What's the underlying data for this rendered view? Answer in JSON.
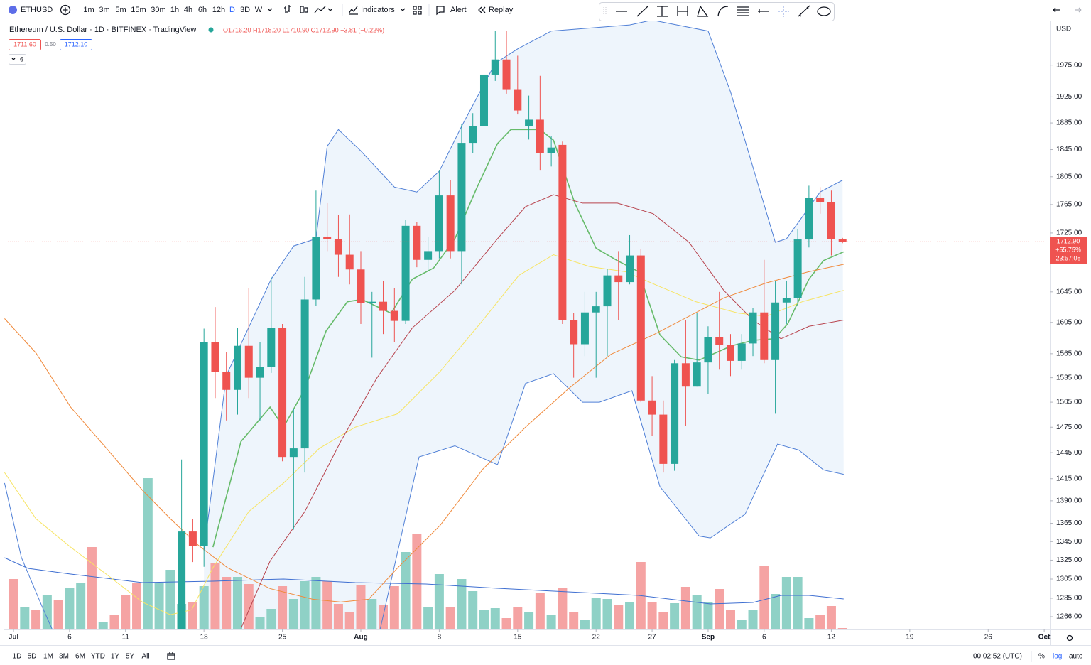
{
  "toolbar": {
    "symbol": "ETHUSD",
    "intervals": [
      "1m",
      "3m",
      "5m",
      "15m",
      "30m",
      "1h",
      "4h",
      "6h",
      "12h",
      "D",
      "3D",
      "W"
    ],
    "indicators": "Indicators",
    "alert": "Alert",
    "replay": "Replay"
  },
  "header": {
    "title": "Ethereum / U.S. Dollar · 1D · BITFINEX · TradingView",
    "ohlc": "O1716.20 H1718.20 L1710.90 C1712.90 −3.81 (−0.22%)",
    "bid": "1711.60",
    "spread": "0.50",
    "ask": "1712.10",
    "indicator_count": "6"
  },
  "bottom_bar": {
    "ranges": [
      "1D",
      "5D",
      "1M",
      "3M",
      "6M",
      "YTD",
      "1Y",
      "5Y",
      "All"
    ],
    "clock": "00:02:52 (UTC)",
    "percent": "%",
    "log": "log",
    "auto": "auto"
  },
  "chart_data": {
    "type": "candlestick",
    "currency": "USD",
    "log_scale": true,
    "grid": false,
    "ylim": [
      1253,
      2046
    ],
    "yticks": [
      {
        "value": 1975,
        "label": "1975.00"
      },
      {
        "value": 1925,
        "label": "1925.00"
      },
      {
        "value": 1885,
        "label": "1885.00"
      },
      {
        "value": 1845,
        "label": "1845.00"
      },
      {
        "value": 1805,
        "label": "1805.00"
      },
      {
        "value": 1765,
        "label": "1765.00"
      },
      {
        "value": 1725,
        "label": "1725.00"
      },
      {
        "value": 1645,
        "label": "1645.00"
      },
      {
        "value": 1605,
        "label": "1605.00"
      },
      {
        "value": 1565,
        "label": "1565.00"
      },
      {
        "value": 1535,
        "label": "1535.00"
      },
      {
        "value": 1505,
        "label": "1505.00"
      },
      {
        "value": 1475,
        "label": "1475.00"
      },
      {
        "value": 1445,
        "label": "1445.00"
      },
      {
        "value": 1415,
        "label": "1415.00"
      },
      {
        "value": 1390,
        "label": "1390.00"
      },
      {
        "value": 1365,
        "label": "1365.00"
      },
      {
        "value": 1345,
        "label": "1345.00"
      },
      {
        "value": 1325,
        "label": "1325.00"
      },
      {
        "value": 1305,
        "label": "1305.00"
      },
      {
        "value": 1285,
        "label": "1285.00"
      },
      {
        "value": 1266,
        "label": "1266.00"
      }
    ],
    "xlim": [
      0.11,
      93.5
    ],
    "xticks": [
      {
        "value": 1,
        "label": "Jul"
      },
      6,
      11,
      18,
      25,
      {
        "value": 32,
        "label": "Aug"
      },
      {
        "value": 39,
        "label": "8"
      },
      {
        "value": 46,
        "label": "15"
      },
      {
        "value": 53,
        "label": "22"
      },
      {
        "value": 58,
        "label": "27"
      },
      {
        "value": 63,
        "label": "Sep"
      },
      {
        "value": 68,
        "label": "6"
      },
      {
        "value": 74,
        "label": "12"
      },
      {
        "value": 81,
        "label": "19"
      },
      {
        "value": 88,
        "label": "26"
      },
      {
        "value": 93,
        "label": "Oct"
      }
    ],
    "up_color": "#26a69a",
    "down_color": "#ef5350",
    "x": [
      16,
      17,
      18,
      19,
      20,
      21,
      22,
      23,
      24,
      25,
      26,
      27,
      28,
      29,
      30,
      31,
      32,
      33,
      34,
      35,
      36,
      37,
      38,
      39,
      40,
      41,
      42,
      43,
      44,
      45,
      46,
      47,
      48,
      49,
      50,
      51,
      52,
      53,
      54,
      55,
      56,
      57,
      58,
      59,
      60,
      61,
      62,
      63,
      64,
      65,
      66,
      67,
      68,
      69,
      70,
      71,
      72,
      73,
      74,
      75
    ],
    "open": [
      1228,
      1356,
      1340,
      1580,
      1542,
      1520,
      1575,
      1535,
      1548,
      1598,
      1440,
      1450,
      1635,
      1720,
      1717,
      1695,
      1675,
      1630,
      1632,
      1620,
      1607,
      1735,
      1688,
      1700,
      1778,
      1700,
      1855,
      1880,
      1960,
      1984,
      1937,
      1880,
      1890,
      1840,
      1852,
      1608,
      1577,
      1618,
      1626,
      1667,
      1658,
      1694,
      1507,
      1490,
      1432,
      1553,
      1524,
      1554,
      1586,
      1576,
      1556,
      1578,
      1618,
      1557,
      1631,
      1637,
      1716,
      1775,
      1768,
      1716.2
    ],
    "high": [
      1437,
      1370,
      1597,
      1625,
      1567,
      1598,
      1650,
      1580,
      1665,
      1603,
      1497,
      1665,
      1785,
      1767,
      1750,
      1751,
      1700,
      1645,
      1660,
      1650,
      1743,
      1740,
      1720,
      1815,
      1800,
      1883,
      1900,
      1970,
      2030,
      2030,
      1990,
      1927,
      1958,
      1865,
      1857,
      1617,
      1645,
      1645,
      1676,
      1700,
      1722,
      1703,
      1537,
      1507,
      1557,
      1608,
      1617,
      1600,
      1645,
      1590,
      1590,
      1624,
      1688,
      1660,
      1660,
      1730,
      1792,
      1790,
      1785,
      1718.2
    ],
    "low": [
      1210,
      1323,
      1318,
      1510,
      1483,
      1490,
      1510,
      1483,
      1541,
      1435,
      1358,
      1422,
      1627,
      1700,
      1665,
      1655,
      1603,
      1560,
      1590,
      1580,
      1603,
      1678,
      1673,
      1690,
      1690,
      1655,
      1840,
      1870,
      1950,
      1930,
      1898,
      1860,
      1815,
      1820,
      1603,
      1535,
      1562,
      1535,
      1562,
      1608,
      1655,
      1505,
      1465,
      1422,
      1424,
      1476,
      1524,
      1515,
      1545,
      1537,
      1545,
      1562,
      1553,
      1491,
      1603,
      1627,
      1705,
      1752,
      1694,
      1710.9
    ],
    "close": [
      1356,
      1340,
      1580,
      1542,
      1520,
      1575,
      1535,
      1548,
      1598,
      1440,
      1450,
      1635,
      1720,
      1717,
      1695,
      1675,
      1630,
      1632,
      1620,
      1607,
      1735,
      1688,
      1700,
      1778,
      1700,
      1855,
      1880,
      1960,
      1984,
      1937,
      1904,
      1890,
      1840,
      1848,
      1608,
      1577,
      1618,
      1626,
      1667,
      1658,
      1694,
      1507,
      1490,
      1432,
      1553,
      1524,
      1554,
      1586,
      1576,
      1556,
      1578,
      1618,
      1557,
      1631,
      1637,
      1716,
      1775,
      1768,
      1716.2,
      1712.9
    ],
    "last_price_label": [
      "1712.90",
      "+55.75%",
      "23:57:08"
    ],
    "band_fill": "#eef5fc",
    "lines": [
      {
        "color": "#4f7fd6",
        "x": [
          18,
          20,
          24,
          26,
          28,
          29,
          30,
          32,
          35,
          37,
          39,
          41,
          44,
          46,
          49,
          56,
          58,
          63,
          65,
          69,
          70,
          73,
          75
        ],
        "values": [
          1335,
          1538,
          1662,
          1707,
          1717,
          1850,
          1875,
          1843,
          1790,
          1783,
          1813,
          1880,
          1978,
          2001,
          2030,
          2040,
          2048,
          2030,
          1933,
          1712,
          1717,
          1783,
          1800
        ]
      },
      {
        "color": "#4f7fd6",
        "x": [
          0.2,
          1.7,
          3.6,
          4.5
        ],
        "values": [
          1410,
          1328,
          1275,
          1252
        ]
      },
      {
        "color": "#4f7fd6",
        "x": [
          33.7,
          37.2,
          40.4,
          44.2,
          46.7,
          49.2,
          51.8,
          53.3,
          56.2,
          58.7,
          62.2,
          63.2,
          66.3,
          69.2,
          71.1,
          73.3,
          75.1
        ],
        "values": [
          1252,
          1440,
          1453,
          1431,
          1528,
          1540,
          1505,
          1505,
          1519,
          1406,
          1351,
          1349,
          1375,
          1455,
          1448,
          1425,
          1420
        ]
      },
      {
        "color": "#66bb6a",
        "x": [
          18.8,
          21.3,
          23.9,
          25.1,
          27,
          28.9,
          30.8,
          32.1,
          34.7,
          36.6,
          38.5,
          40.4,
          42.3,
          44.2,
          45.4,
          48,
          49.2,
          51.1,
          53,
          54.9,
          56.8,
          58.7,
          60.6,
          62.2,
          65.1,
          67,
          68.9,
          70.1,
          72,
          73.3,
          75.1
        ],
        "values": [
          1339,
          1458,
          1499,
          1475,
          1521,
          1594,
          1632,
          1635,
          1617,
          1662,
          1677,
          1717,
          1787,
          1854,
          1875,
          1875,
          1859,
          1767,
          1704,
          1687,
          1672,
          1589,
          1561,
          1557,
          1575,
          1582,
          1584,
          1603,
          1662,
          1687,
          1699
        ]
      },
      {
        "color": "#f7e463",
        "x": [
          0.2,
          3,
          6.1,
          9.3,
          12.5,
          15,
          16.9,
          18.8,
          22,
          25.1,
          28.3,
          31.5,
          35.3,
          39.1,
          42.9,
          46.1,
          49.2,
          52.4,
          55.6,
          58.7,
          61.9,
          65.7,
          68.2,
          71.4,
          75.1
        ],
        "values": [
          1422,
          1370,
          1339,
          1310,
          1281,
          1268,
          1273,
          1317,
          1378,
          1410,
          1450,
          1475,
          1491,
          1543,
          1608,
          1667,
          1695,
          1679,
          1672,
          1652,
          1632,
          1617,
          1613,
          1632,
          1647
        ]
      },
      {
        "color": "#f08a3c",
        "x": [
          0.2,
          3,
          6.1,
          9.3,
          12.5,
          15,
          17.5,
          20.1,
          23.9,
          27.7,
          30.2,
          32.7,
          35.3,
          39.1,
          42.9,
          46.7,
          50.5,
          54.3,
          58.1,
          61.3,
          64.4,
          68.2,
          72,
          75.1
        ],
        "values": [
          1610,
          1566,
          1499,
          1450,
          1402,
          1370,
          1341,
          1317,
          1295,
          1284,
          1281,
          1284,
          1317,
          1363,
          1426,
          1475,
          1521,
          1564,
          1589,
          1613,
          1637,
          1657,
          1672,
          1682
        ]
      },
      {
        "color": "#b8434d",
        "x": [
          21.3,
          23.9,
          27,
          30.2,
          33.4,
          36.6,
          40.4,
          44.2,
          46.7,
          49.2,
          51.8,
          54.9,
          58.1,
          61.3,
          64.4,
          67,
          69.5,
          72,
          75.1
        ],
        "values": [
          1254,
          1324,
          1378,
          1458,
          1534,
          1598,
          1647,
          1717,
          1762,
          1779,
          1767,
          1767,
          1752,
          1712,
          1647,
          1608,
          1584,
          1600,
          1608
        ]
      }
    ],
    "volume": {
      "lim": [
        0,
        400
      ],
      "x": [
        1,
        2,
        3,
        4,
        5,
        6,
        7,
        8,
        9,
        10,
        11,
        12,
        13,
        14,
        15,
        16,
        17,
        18,
        19,
        20,
        21,
        22,
        23,
        24,
        25,
        26,
        27,
        28,
        29,
        30,
        31,
        32,
        33,
        34,
        35,
        36,
        37,
        38,
        39,
        40,
        41,
        42,
        43,
        44,
        45,
        46,
        47,
        48,
        49,
        50,
        51,
        52,
        53,
        54,
        55,
        56,
        57,
        58,
        59,
        60,
        61,
        62,
        63,
        64,
        65,
        66,
        67,
        68,
        69,
        70,
        71,
        72,
        73,
        74,
        75
      ],
      "values": [
        71,
        31,
        28,
        49,
        41,
        58,
        66,
        116,
        11,
        21,
        48,
        66,
        213,
        66,
        84,
        36,
        38,
        61,
        94,
        74,
        74,
        64,
        18,
        29,
        61,
        43,
        68,
        74,
        68,
        36,
        24,
        63,
        43,
        34,
        61,
        109,
        134,
        31,
        78,
        31,
        71,
        54,
        28,
        30,
        16,
        31,
        24,
        51,
        21,
        58,
        24,
        14,
        44,
        43,
        34,
        38,
        95,
        39,
        24,
        37,
        60,
        49,
        38,
        57,
        28,
        14,
        27,
        89,
        50,
        74,
        74,
        16,
        21,
        33,
        2
      ],
      "colors": [
        "#f5a3a3",
        "#8fd1c6",
        "#f5a3a3",
        "#8fd1c6",
        "#f5a3a3",
        "#8fd1c6",
        "#8fd1c6",
        "#f5a3a3",
        "#8fd1c6",
        "#f5a3a3",
        "#f5a3a3",
        "#f5a3a3",
        "#8fd1c6",
        "#8fd1c6",
        "#8fd1c6",
        "#8fd1c6",
        "#f5a3a3",
        "#8fd1c6",
        "#f5a3a3",
        "#f5a3a3",
        "#8fd1c6",
        "#f5a3a3",
        "#8fd1c6",
        "#8fd1c6",
        "#f5a3a3",
        "#8fd1c6",
        "#8fd1c6",
        "#8fd1c6",
        "#f5a3a3",
        "#f5a3a3",
        "#f5a3a3",
        "#f5a3a3",
        "#8fd1c6",
        "#f5a3a3",
        "#f5a3a3",
        "#8fd1c6",
        "#f5a3a3",
        "#8fd1c6",
        "#8fd1c6",
        "#f5a3a3",
        "#8fd1c6",
        "#8fd1c6",
        "#8fd1c6",
        "#8fd1c6",
        "#f5a3a3",
        "#f5a3a3",
        "#8fd1c6",
        "#f5a3a3",
        "#8fd1c6",
        "#f5a3a3",
        "#f5a3a3",
        "#8fd1c6",
        "#8fd1c6",
        "#8fd1c6",
        "#f5a3a3",
        "#8fd1c6",
        "#f5a3a3",
        "#f5a3a3",
        "#f5a3a3",
        "#8fd1c6",
        "#f5a3a3",
        "#8fd1c6",
        "#8fd1c6",
        "#f5a3a3",
        "#f5a3a3",
        "#8fd1c6",
        "#8fd1c6",
        "#f5a3a3",
        "#8fd1c6",
        "#8fd1c6",
        "#8fd1c6",
        "#8fd1c6",
        "#f5a3a3",
        "#f5a3a3",
        "#f5a3a3"
      ],
      "ma_color": "#3f6fd1",
      "ma_x": [
        0.2,
        2.3,
        6.1,
        12.5,
        18.8,
        25.1,
        31.5,
        37.8,
        44.2,
        50.5,
        56.8,
        63.2,
        67,
        69.5,
        72,
        75.1
      ],
      "ma_values": [
        101,
        86,
        78,
        66,
        68,
        71,
        66,
        64,
        58,
        53,
        48,
        36,
        38,
        48,
        48,
        43
      ]
    }
  }
}
